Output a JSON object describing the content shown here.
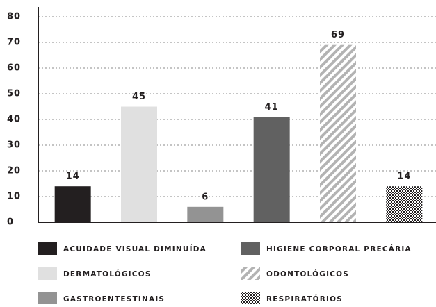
{
  "chart_data": {
    "type": "bar",
    "categories": [
      "ACUIDADE VISUAL DIMINUÍDA",
      "DERMATOLÓGICOS",
      "GASTROENTESTINAIS",
      "HIGIENE CORPORAL PRECÁRIA",
      "ODONTOLÓGICOS",
      "RESPIRATÓRIOS"
    ],
    "values": [
      14,
      45,
      6,
      41,
      69,
      14
    ],
    "colors": [
      "#231f20",
      "#e0e0e0",
      "#939393",
      "#616161",
      "#b3b3b3",
      "#231f20"
    ],
    "patterns": [
      "solid",
      "solid",
      "solid",
      "solid",
      "diagonal",
      "checker"
    ],
    "ylim": [
      0,
      80
    ],
    "yticks": [
      0,
      10,
      20,
      30,
      40,
      50,
      60,
      70,
      80
    ],
    "grid": true,
    "legend": "bottom"
  }
}
